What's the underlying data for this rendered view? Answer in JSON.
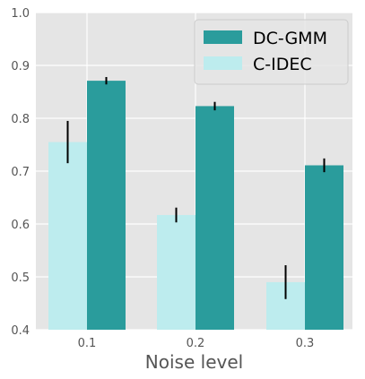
{
  "chart_data": {
    "type": "bar",
    "categories": [
      "0.1",
      "0.2",
      "0.3"
    ],
    "series": [
      {
        "name": "C-IDEC",
        "values": [
          0.755,
          0.617,
          0.49
        ],
        "errors": [
          0.04,
          0.014,
          0.032
        ],
        "color": "#bdecee"
      },
      {
        "name": "DC-GMM",
        "values": [
          0.871,
          0.823,
          0.711
        ],
        "errors": [
          0.007,
          0.008,
          0.013
        ],
        "color": "#2a9c9c"
      }
    ],
    "xlabel": "Noise level",
    "ylabel": "",
    "ylim": [
      0.4,
      1.0
    ],
    "yticks": [
      0.4,
      0.5,
      0.6,
      0.7,
      0.8,
      0.9,
      1.0
    ],
    "ytick_labels": [
      "0.4",
      "0.5",
      "0.6",
      "0.7",
      "0.8",
      "0.9",
      "1.0"
    ],
    "grid": true,
    "legend_position": "top-right",
    "legend_order": [
      "DC-GMM",
      "C-IDEC"
    ],
    "background_color": "#e5e5e5",
    "grid_color": "#ffffff",
    "error_bar_color": "#000000"
  }
}
